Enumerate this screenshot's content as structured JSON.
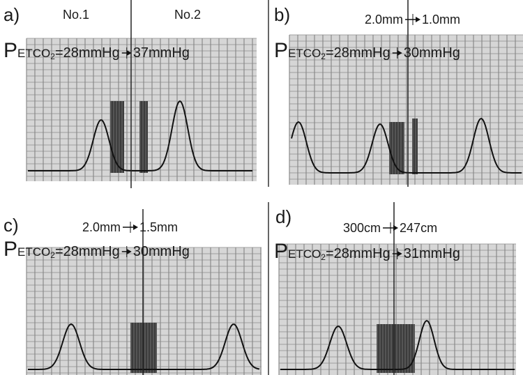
{
  "panels": [
    {
      "label": "a)",
      "markers": [
        "No.1",
        "No.2"
      ],
      "pressure": {
        "symbol": "P",
        "index": "ETCO",
        "subscript": "2",
        "from": "=28mmHg",
        "to": "37mmHg"
      }
    },
    {
      "label": "b)",
      "setting": {
        "from": "2.0mm",
        "to": "1.0mm"
      },
      "pressure": {
        "symbol": "P",
        "index": "ETCO",
        "subscript": "2",
        "from": "=28mmHg",
        "to": "30mmHg"
      }
    },
    {
      "label": "c)",
      "setting": {
        "from": "2.0mm",
        "to": "1.5mm"
      },
      "pressure": {
        "symbol": "P",
        "index": "ETCO",
        "subscript": "2",
        "from": "=28mmHg",
        "to": "30mmHg"
      }
    },
    {
      "label": "d)",
      "setting": {
        "from": "300cm",
        "to": "247cm"
      },
      "pressure": {
        "symbol": "P",
        "index": "ETCO",
        "subscript": "2",
        "from": "=28mmHg",
        "to": "31mmHg"
      }
    }
  ]
}
